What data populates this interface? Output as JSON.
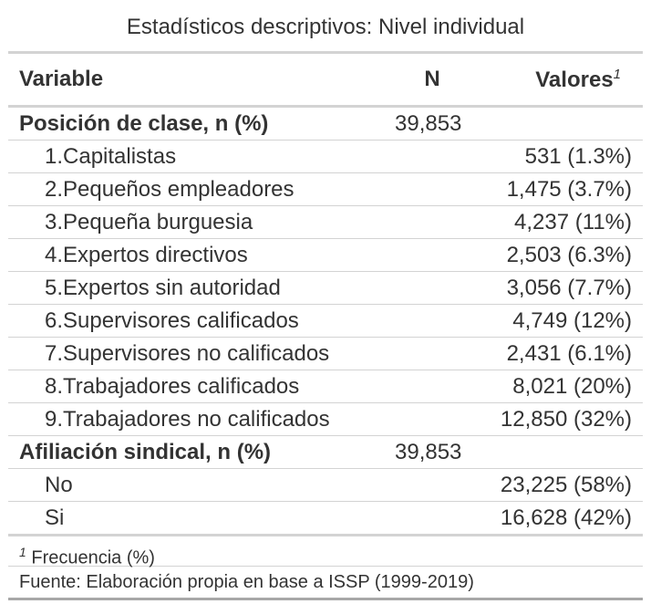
{
  "title": "Estadísticos descriptivos: Nivel individual",
  "headers": {
    "variable": "Variable",
    "n": "N",
    "values": "Valores",
    "values_mark": "1"
  },
  "groups": [
    {
      "label": "Posición de clase, n (%)",
      "n": "39,853",
      "items": [
        {
          "label": "1.Capitalistas",
          "value": "531 (1.3%)"
        },
        {
          "label": "2.Pequeños empleadores",
          "value": "1,475 (3.7%)"
        },
        {
          "label": "3.Pequeña burguesia",
          "value": "4,237 (11%)"
        },
        {
          "label": "4.Expertos directivos",
          "value": "2,503 (6.3%)"
        },
        {
          "label": "5.Expertos sin autoridad",
          "value": "3,056 (7.7%)"
        },
        {
          "label": "6.Supervisores calificados",
          "value": "4,749 (12%)"
        },
        {
          "label": "7.Supervisores no calificados",
          "value": "2,431 (6.1%)"
        },
        {
          "label": "8.Trabajadores calificados",
          "value": "8,021 (20%)"
        },
        {
          "label": "9.Trabajadores no calificados",
          "value": "12,850 (32%)"
        }
      ]
    },
    {
      "label": "Afiliación sindical, n (%)",
      "n": "39,853",
      "items": [
        {
          "label": "No",
          "value": "23,225 (58%)"
        },
        {
          "label": "Si",
          "value": "16,628 (42%)"
        }
      ]
    }
  ],
  "footnotes": {
    "mark": "1",
    "note": "Frecuencia (%)",
    "source": "Fuente: Elaboración propia en base a ISSP (1999-2019)"
  }
}
